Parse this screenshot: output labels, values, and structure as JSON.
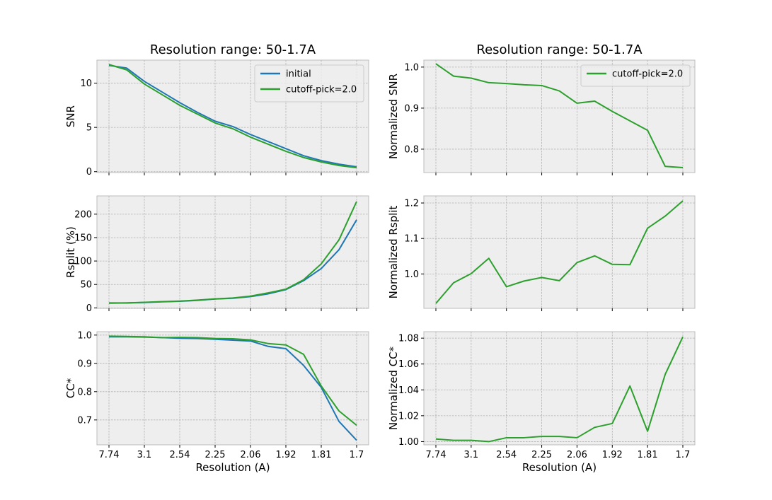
{
  "chart_data": [
    {
      "type": "line",
      "title": "Resolution range: 50-1.7A",
      "xlabel": "",
      "ylabel": "SNR",
      "x": [
        0,
        1,
        2,
        3,
        4,
        5,
        6,
        7,
        8,
        9,
        10,
        11,
        12,
        13,
        14
      ],
      "xticks": [
        "7.74",
        "3.1",
        "2.54",
        "2.25",
        "2.06",
        "1.92",
        "1.81",
        "1.7"
      ],
      "xtick_positions": [
        0,
        2,
        4,
        6,
        8,
        10,
        12,
        14
      ],
      "yticks": [
        0,
        5,
        10
      ],
      "ylim": [
        -0.1,
        12.6
      ],
      "legend": "top-right",
      "grid": true,
      "series": [
        {
          "name": "initial",
          "color": "#1f77b4",
          "values": [
            12.0,
            11.7,
            10.2,
            9.0,
            7.8,
            6.7,
            5.7,
            5.1,
            4.2,
            3.4,
            2.6,
            1.8,
            1.25,
            0.85,
            0.55
          ]
        },
        {
          "name": "cutoff-pick=2.0",
          "color": "#2ca02c",
          "values": [
            12.1,
            11.5,
            9.9,
            8.7,
            7.5,
            6.5,
            5.5,
            4.85,
            3.9,
            3.1,
            2.3,
            1.6,
            1.1,
            0.7,
            0.45
          ]
        }
      ]
    },
    {
      "type": "line",
      "title": "Resolution range: 50-1.7A",
      "xlabel": "",
      "ylabel": "Normalized SNR",
      "x": [
        0,
        1,
        2,
        3,
        4,
        5,
        6,
        7,
        8,
        9,
        10,
        11,
        12,
        13,
        14
      ],
      "xticks": [
        "7.74",
        "3.1",
        "2.54",
        "2.25",
        "2.06",
        "1.92",
        "1.81",
        "1.7"
      ],
      "xtick_positions": [
        0,
        2,
        4,
        6,
        8,
        10,
        12,
        14
      ],
      "yticks": [
        0.8,
        0.9,
        1.0
      ],
      "ylim": [
        0.743,
        1.017
      ],
      "legend": "top-right",
      "grid": true,
      "series": [
        {
          "name": "cutoff-pick=2.0",
          "color": "#2ca02c",
          "values": [
            1.008,
            0.978,
            0.973,
            0.962,
            0.96,
            0.957,
            0.955,
            0.942,
            0.912,
            0.917,
            0.892,
            0.869,
            0.846,
            0.758,
            0.755
          ]
        }
      ]
    },
    {
      "type": "line",
      "title": "",
      "xlabel": "",
      "ylabel": "Rsplit (%)",
      "x": [
        0,
        1,
        2,
        3,
        4,
        5,
        6,
        7,
        8,
        9,
        10,
        11,
        12,
        13,
        14
      ],
      "xticks": [
        "7.74",
        "3.1",
        "2.54",
        "2.25",
        "2.06",
        "1.92",
        "1.81",
        "1.7"
      ],
      "xtick_positions": [
        0,
        2,
        4,
        6,
        8,
        10,
        12,
        14
      ],
      "yticks": [
        0,
        50,
        100,
        150,
        200
      ],
      "ylim": [
        -1,
        239
      ],
      "grid": true,
      "series": [
        {
          "name": "initial",
          "color": "#1f77b4",
          "values": [
            10.5,
            10.5,
            11.5,
            13,
            14,
            16,
            19,
            20.5,
            24,
            30,
            39,
            58,
            84,
            124,
            188
          ]
        },
        {
          "name": "cutoff-pick=2.0",
          "color": "#2ca02c",
          "values": [
            10,
            10.5,
            11.8,
            13.3,
            14.5,
            16.5,
            19.2,
            21,
            25,
            32,
            40,
            60,
            94,
            145,
            227
          ]
        }
      ]
    },
    {
      "type": "line",
      "title": "",
      "xlabel": "",
      "ylabel": "Normalized Rsplit",
      "x": [
        0,
        1,
        2,
        3,
        4,
        5,
        6,
        7,
        8,
        9,
        10,
        11,
        12,
        13,
        14
      ],
      "xticks": [
        "7.74",
        "3.1",
        "2.54",
        "2.25",
        "2.06",
        "1.92",
        "1.81",
        "1.7"
      ],
      "xtick_positions": [
        0,
        2,
        4,
        6,
        8,
        10,
        12,
        14
      ],
      "yticks": [
        1.0,
        1.1,
        1.2
      ],
      "ylim": [
        0.903,
        1.22
      ],
      "grid": true,
      "series": [
        {
          "name": "cutoff-pick=2.0",
          "color": "#2ca02c",
          "values": [
            0.917,
            0.975,
            1.001,
            1.044,
            0.964,
            0.98,
            0.99,
            0.981,
            1.032,
            1.051,
            1.027,
            1.026,
            1.129,
            1.163,
            1.206
          ]
        }
      ]
    },
    {
      "type": "line",
      "title": "",
      "xlabel": "Resolution (A)",
      "ylabel": "CC*",
      "x": [
        0,
        1,
        2,
        3,
        4,
        5,
        6,
        7,
        8,
        9,
        10,
        11,
        12,
        13,
        14
      ],
      "xticks": [
        "7.74",
        "3.1",
        "2.54",
        "2.25",
        "2.06",
        "1.92",
        "1.81",
        "1.7"
      ],
      "xtick_positions": [
        0,
        2,
        4,
        6,
        8,
        10,
        12,
        14
      ],
      "yticks": [
        0.7,
        0.8,
        0.9,
        1.0
      ],
      "ylim": [
        0.612,
        1.012
      ],
      "grid": true,
      "series": [
        {
          "name": "initial",
          "color": "#1f77b4",
          "values": [
            0.994,
            0.994,
            0.993,
            0.991,
            0.989,
            0.988,
            0.985,
            0.982,
            0.979,
            0.96,
            0.952,
            0.893,
            0.815,
            0.695,
            0.628
          ]
        },
        {
          "name": "cutoff-pick=2.0",
          "color": "#2ca02c",
          "values": [
            0.996,
            0.995,
            0.994,
            0.991,
            0.992,
            0.991,
            0.988,
            0.987,
            0.983,
            0.97,
            0.965,
            0.932,
            0.82,
            0.732,
            0.681
          ]
        }
      ]
    },
    {
      "type": "line",
      "title": "",
      "xlabel": "Resolution (A)",
      "ylabel": "Normalized CC*",
      "x": [
        0,
        1,
        2,
        3,
        4,
        5,
        6,
        7,
        8,
        9,
        10,
        11,
        12,
        13,
        14
      ],
      "xticks": [
        "7.74",
        "3.1",
        "2.54",
        "2.25",
        "2.06",
        "1.92",
        "1.81",
        "1.7"
      ],
      "xtick_positions": [
        0,
        2,
        4,
        6,
        8,
        10,
        12,
        14
      ],
      "yticks": [
        1.0,
        1.02,
        1.04,
        1.06,
        1.08
      ],
      "ylim": [
        0.9975,
        1.085
      ],
      "grid": true,
      "series": [
        {
          "name": "cutoff-pick=2.0",
          "color": "#2ca02c",
          "values": [
            1.002,
            1.001,
            1.001,
            1.0,
            1.003,
            1.003,
            1.004,
            1.004,
            1.003,
            1.011,
            1.014,
            1.043,
            1.008,
            1.052,
            1.081
          ]
        }
      ]
    }
  ]
}
